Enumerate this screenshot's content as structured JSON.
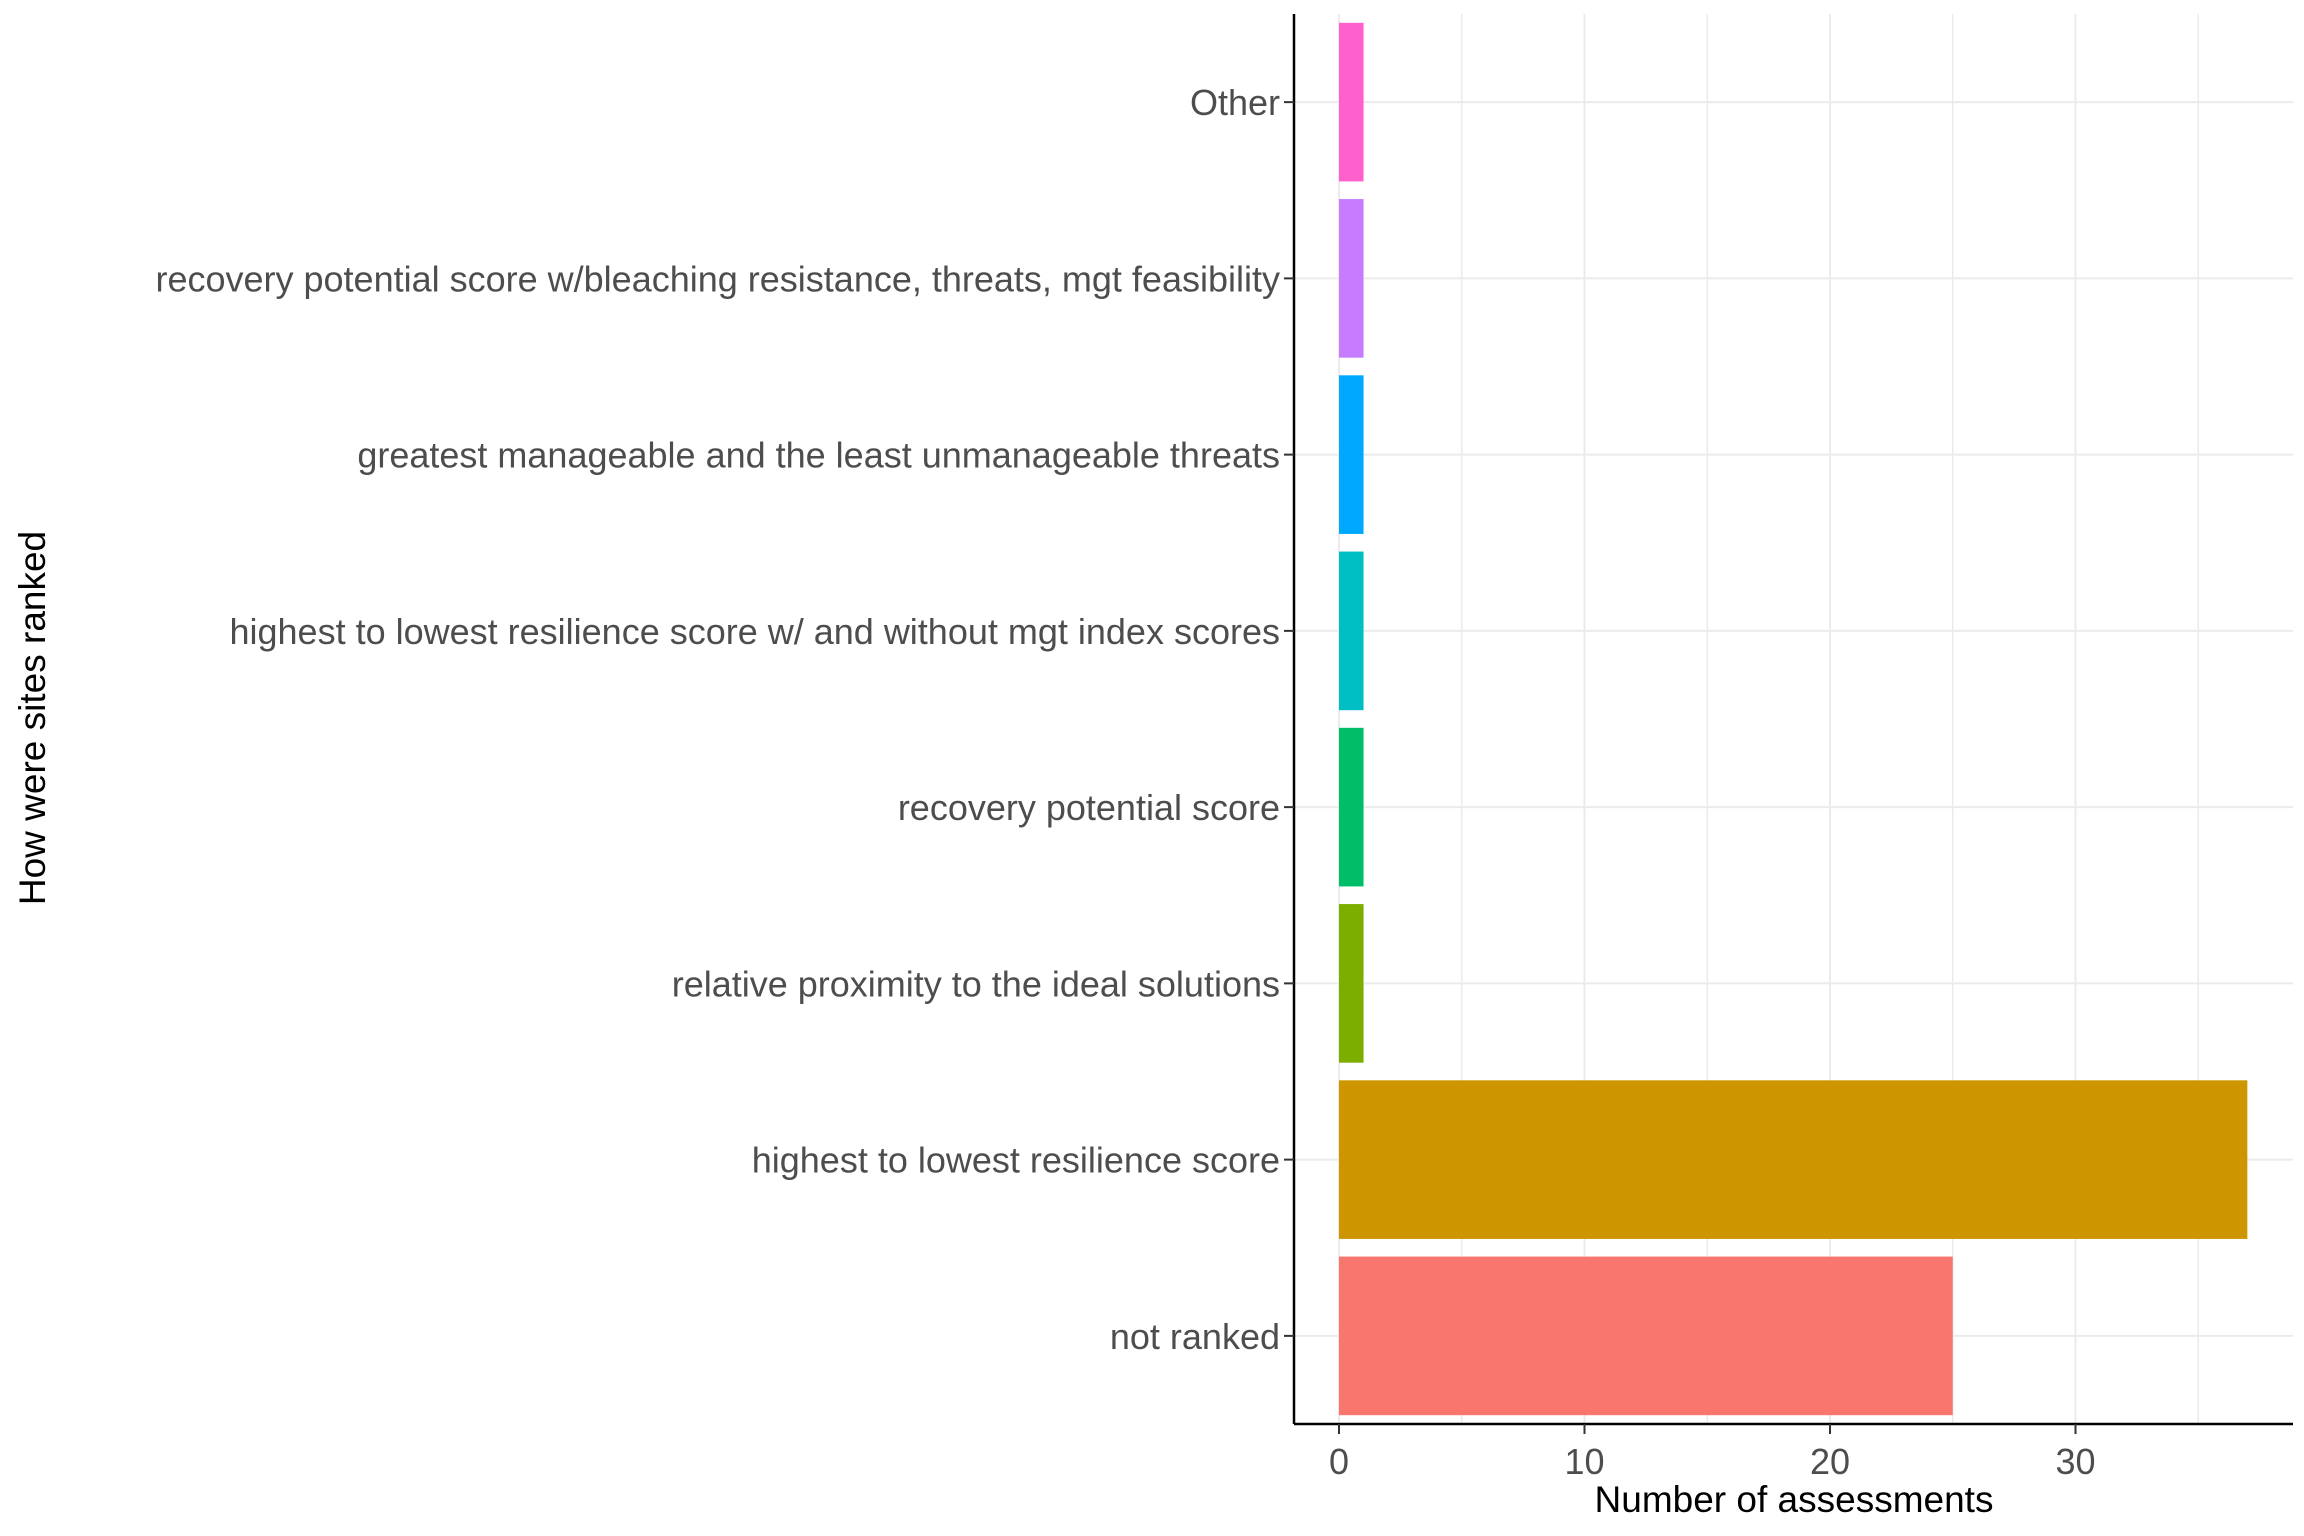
{
  "chart_data": {
    "type": "bar",
    "orientation": "horizontal",
    "title": "",
    "xlabel": "Number of assessments",
    "ylabel": "How were sites ranked",
    "xlim": [
      -1.8,
      38.5
    ],
    "x_ticks": [
      0,
      10,
      20,
      30
    ],
    "grid": true,
    "legend": "none",
    "categories": [
      "not ranked",
      "highest to lowest resilience score",
      "relative proximity to the ideal solutions",
      "recovery potential score",
      "highest to lowest resilience score w/ and without mgt index scores",
      "greatest manageable and the least unmanageable threats",
      "recovery potential score w/bleaching resistance, threats, mgt feasibility",
      "Other"
    ],
    "values": [
      25,
      37,
      1,
      1,
      1,
      1,
      1,
      1
    ],
    "colors": [
      "#F8766D",
      "#CD9600",
      "#7CAE00",
      "#00BE67",
      "#00BFC4",
      "#00A9FF",
      "#C77CFF",
      "#FF61CC"
    ],
    "tick_label_color": "#4d4d4d",
    "grid_color": "#ebebeb",
    "axis_color": "#000000"
  }
}
